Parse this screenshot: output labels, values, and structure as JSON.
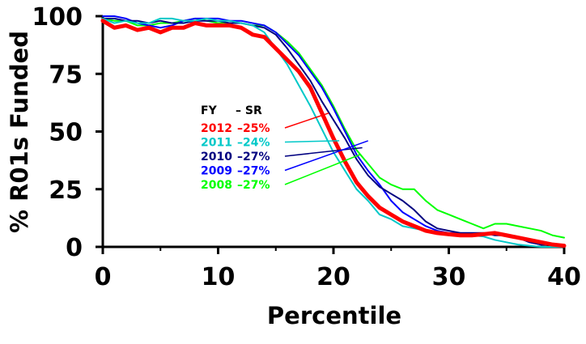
{
  "chart_data": {
    "type": "line",
    "title": "",
    "xlabel": "Percentile",
    "ylabel": "% R01s Funded",
    "xlim": [
      0,
      40
    ],
    "ylim": [
      0,
      100
    ],
    "xticks": [
      0,
      10,
      20,
      30,
      40
    ],
    "yticks": [
      0,
      25,
      50,
      75,
      100
    ],
    "x_tick_labels": [
      "0",
      "10",
      "20",
      "30",
      "40"
    ],
    "y_tick_labels": [
      "0",
      "25",
      "50",
      "75",
      "100"
    ],
    "grid": false,
    "legend_header": {
      "col1": "FY",
      "col2": "–  SR"
    },
    "legend_placement": "center-left",
    "x": [
      0,
      1,
      2,
      3,
      4,
      5,
      6,
      7,
      8,
      9,
      10,
      11,
      12,
      13,
      14,
      15,
      16,
      17,
      18,
      19,
      20,
      21,
      22,
      23,
      24,
      25,
      26,
      27,
      28,
      29,
      30,
      31,
      32,
      33,
      34,
      35,
      36,
      37,
      38,
      39,
      40
    ],
    "series": [
      {
        "name": "2012",
        "sr": "–25%",
        "color": "#ff0000",
        "emphasis": true,
        "values": [
          98,
          95,
          96,
          94,
          95,
          93,
          95,
          95,
          97,
          96,
          96,
          96,
          95,
          92,
          91,
          86,
          81,
          76,
          69,
          58,
          47,
          37,
          28,
          22,
          17,
          14,
          11,
          9,
          7,
          6,
          5.5,
          5,
          5,
          5.5,
          6,
          5,
          4,
          3,
          2,
          1,
          0.5
        ]
      },
      {
        "name": "2011",
        "sr": "–24%",
        "color": "#00c8c8",
        "emphasis": false,
        "values": [
          99,
          97,
          98,
          97,
          97,
          99,
          99,
          98,
          98,
          99,
          98,
          98,
          97,
          96,
          93,
          86,
          79,
          70,
          61,
          51,
          41,
          33,
          25,
          20,
          14,
          12,
          9,
          8,
          7,
          6,
          5,
          5,
          5,
          4.5,
          3,
          2,
          1,
          0.5,
          0,
          0,
          0
        ]
      },
      {
        "name": "2010",
        "sr": "–27%",
        "color": "#000080",
        "emphasis": false,
        "values": [
          99,
          99,
          98,
          98,
          97,
          98,
          97,
          97,
          98,
          98,
          98,
          97,
          97,
          96,
          95,
          92,
          86,
          79,
          72,
          63,
          55,
          47,
          38,
          31,
          26,
          23,
          20,
          16,
          11,
          8,
          7,
          6,
          6,
          6,
          5,
          5,
          4,
          2,
          1,
          1,
          0
        ]
      },
      {
        "name": "2009",
        "sr": "–27%",
        "color": "#0000ff",
        "emphasis": false,
        "values": [
          100,
          100,
          99,
          97,
          96,
          95,
          96,
          98,
          99,
          99,
          99,
          98,
          98,
          97,
          96,
          93,
          88,
          83,
          76,
          69,
          60,
          50,
          40,
          33,
          27,
          20,
          15,
          12,
          9,
          7,
          6,
          6,
          6,
          6,
          6,
          5,
          4,
          2,
          1,
          1,
          0
        ]
      },
      {
        "name": "2008",
        "sr": "–27%",
        "color": "#00ff00",
        "emphasis": false,
        "values": [
          99,
          98,
          98,
          96,
          96,
          97,
          97,
          98,
          99,
          98,
          97,
          97,
          97,
          96,
          96,
          93,
          89,
          84,
          77,
          70,
          61,
          51,
          42,
          36,
          30,
          27,
          25,
          25,
          20,
          16,
          14,
          12,
          10,
          8,
          10,
          10,
          9,
          8,
          7,
          5,
          4
        ]
      }
    ]
  }
}
